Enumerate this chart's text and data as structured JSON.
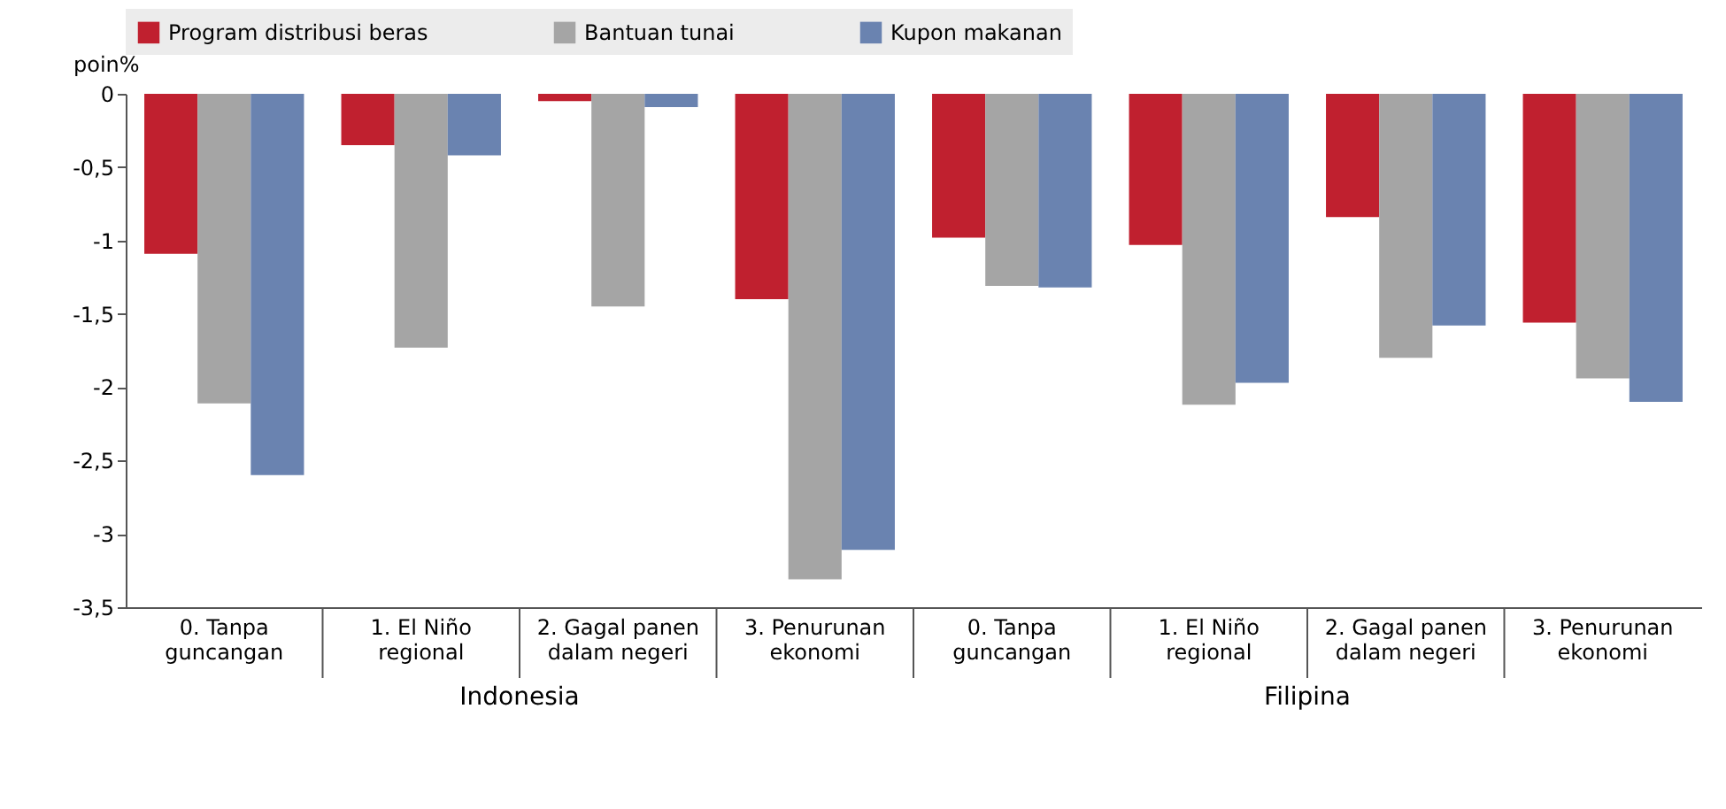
{
  "chart_data": {
    "type": "bar",
    "ylabel": "poin%",
    "categories": [
      "0. Tanpa guncangan",
      "1. El Niño regional",
      "2. Gagal panen dalam negeri",
      "3. Penurunan ekonomi",
      "0. Tanpa guncangan",
      "1. El Niño regional",
      "2. Gagal panen dalam negeri",
      "3. Penurunan ekonomi"
    ],
    "series": [
      {
        "name": "Program distribusi beras",
        "color": "#c0202f",
        "values": [
          -1.09,
          -0.35,
          -0.05,
          -1.4,
          -0.98,
          -1.03,
          -0.84,
          -1.56
        ]
      },
      {
        "name": "Bantuan tunai",
        "color": "#a5a5a5",
        "values": [
          -2.11,
          -1.73,
          -1.45,
          -3.31,
          -1.31,
          -2.12,
          -1.8,
          -1.94
        ]
      },
      {
        "name": "Kupon makanan",
        "color": "#6a83b0",
        "values": [
          -2.6,
          -0.42,
          -0.09,
          -3.11,
          -1.32,
          -1.97,
          -1.58,
          -2.1
        ]
      }
    ],
    "ylim": [
      -3.5,
      0
    ],
    "yticks": [
      {
        "value": -3.5,
        "label": "-3,5"
      },
      {
        "value": -3,
        "label": "-3"
      },
      {
        "value": -2.5,
        "label": "-2,5"
      },
      {
        "value": -2,
        "label": "-2"
      },
      {
        "value": -1.5,
        "label": "-1,5"
      },
      {
        "value": -1,
        "label": "-1"
      },
      {
        "value": -0.5,
        "label": "-0,5"
      },
      {
        "value": 0,
        "label": "0"
      }
    ],
    "grid": false,
    "legend": "top",
    "annotations": [
      "Indonesia",
      "Filipina"
    ]
  }
}
